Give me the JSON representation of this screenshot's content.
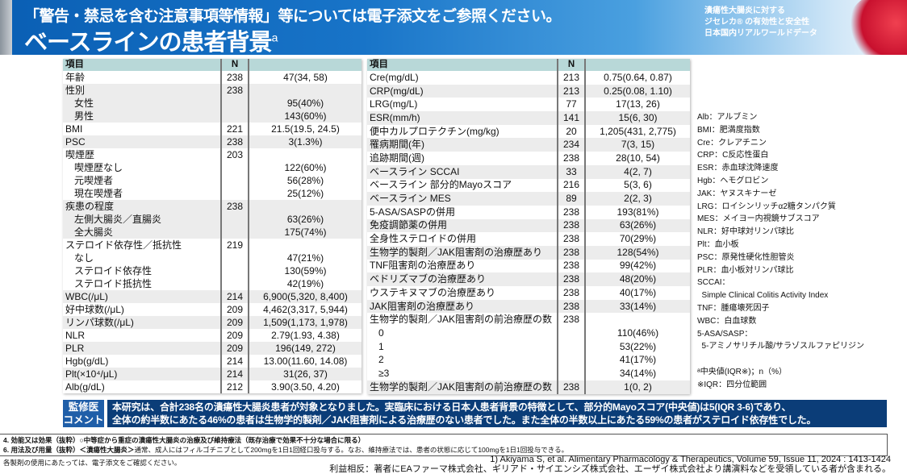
{
  "header": {
    "warning": "「警告・禁忌を含む注意事項等情報」等については電子添文をご参照ください。",
    "title": "ベースラインの患者背景",
    "title_sup": "a",
    "sub": [
      "潰瘍性大腸炎に対する",
      "ジセレカ® の有効性と安全性",
      "日本国内リアルワールドデータ"
    ]
  },
  "left_table": {
    "headers": [
      "項目",
      "N",
      ""
    ],
    "rows": [
      {
        "label": "年齢",
        "n": "238",
        "v": "47(34, 58)",
        "sub": false,
        "shade": false
      },
      {
        "label": "性別",
        "n": "238",
        "v": "",
        "sub": false,
        "shade": true
      },
      {
        "label": "女性",
        "n": "",
        "v": "95(40%)",
        "sub": true,
        "shade": true
      },
      {
        "label": "男性",
        "n": "",
        "v": "143(60%)",
        "sub": true,
        "shade": true
      },
      {
        "label": "BMI",
        "n": "221",
        "v": "21.5(19.5, 24.5)",
        "sub": false,
        "shade": false
      },
      {
        "label": "PSC",
        "n": "238",
        "v": "3(1.3%)",
        "sub": false,
        "shade": true
      },
      {
        "label": "喫煙歴",
        "n": "203",
        "v": "",
        "sub": false,
        "shade": false
      },
      {
        "label": "喫煙歴なし",
        "n": "",
        "v": "122(60%)",
        "sub": true,
        "shade": false
      },
      {
        "label": "元喫煙者",
        "n": "",
        "v": "56(28%)",
        "sub": true,
        "shade": false
      },
      {
        "label": "現在喫煙者",
        "n": "",
        "v": "25(12%)",
        "sub": true,
        "shade": false
      },
      {
        "label": "疾患の程度",
        "n": "238",
        "v": "",
        "sub": false,
        "shade": true
      },
      {
        "label": "左側大腸炎／直腸炎",
        "n": "",
        "v": "63(26%)",
        "sub": true,
        "shade": true
      },
      {
        "label": "全大腸炎",
        "n": "",
        "v": "175(74%)",
        "sub": true,
        "shade": true
      },
      {
        "label": "ステロイド依存性／抵抗性",
        "n": "219",
        "v": "",
        "sub": false,
        "shade": false
      },
      {
        "label": "なし",
        "n": "",
        "v": "47(21%)",
        "sub": true,
        "shade": false
      },
      {
        "label": "ステロイド依存性",
        "n": "",
        "v": "130(59%)",
        "sub": true,
        "shade": false
      },
      {
        "label": "ステロイド抵抗性",
        "n": "",
        "v": "42(19%)",
        "sub": true,
        "shade": false
      },
      {
        "label": "WBC(/μL)",
        "n": "214",
        "v": "6,900(5,320, 8,400)",
        "sub": false,
        "shade": true
      },
      {
        "label": "好中球数(/μL)",
        "n": "209",
        "v": "4,462(3,317, 5,944)",
        "sub": false,
        "shade": false
      },
      {
        "label": "リンパ球数(/μL)",
        "n": "209",
        "v": "1,509(1,173, 1,978)",
        "sub": false,
        "shade": true
      },
      {
        "label": "NLR",
        "n": "209",
        "v": "2.79(1.93, 4.38)",
        "sub": false,
        "shade": false
      },
      {
        "label": "PLR",
        "n": "209",
        "v": "196(149, 272)",
        "sub": false,
        "shade": true
      },
      {
        "label": "Hgb(g/dL)",
        "n": "214",
        "v": "13.00(11.60, 14.08)",
        "sub": false,
        "shade": false
      },
      {
        "label": "Plt(×10⁴/μL)",
        "n": "214",
        "v": "31(26, 37)",
        "sub": false,
        "shade": true
      },
      {
        "label": "Alb(g/dL)",
        "n": "212",
        "v": "3.90(3.50, 4.20)",
        "sub": false,
        "shade": false
      }
    ]
  },
  "right_table": {
    "headers": [
      "項目",
      "N",
      ""
    ],
    "rows": [
      {
        "label": "Cre(mg/dL)",
        "n": "213",
        "v": "0.75(0.64, 0.87)",
        "sub": false,
        "shade": false
      },
      {
        "label": "CRP(mg/dL)",
        "n": "213",
        "v": "0.25(0.08, 1.10)",
        "sub": false,
        "shade": true
      },
      {
        "label": "LRG(mg/L)",
        "n": "77",
        "v": "17(13, 26)",
        "sub": false,
        "shade": false
      },
      {
        "label": "ESR(mm/h)",
        "n": "141",
        "v": "15(6, 30)",
        "sub": false,
        "shade": true
      },
      {
        "label": "便中カルプロテクチン(mg/kg)",
        "n": "20",
        "v": "1,205(431, 2,775)",
        "sub": false,
        "shade": false
      },
      {
        "label": "罹病期間(年)",
        "n": "234",
        "v": "7(3, 15)",
        "sub": false,
        "shade": true
      },
      {
        "label": "追跡期間(週)",
        "n": "238",
        "v": "28(10, 54)",
        "sub": false,
        "shade": false
      },
      {
        "label": "ベースライン SCCAI",
        "n": "33",
        "v": "4(2, 7)",
        "sub": false,
        "shade": true
      },
      {
        "label": "ベースライン 部分的Mayoスコア",
        "n": "216",
        "v": "5(3, 6)",
        "sub": false,
        "shade": false
      },
      {
        "label": "ベースライン MES",
        "n": "89",
        "v": "2(2, 3)",
        "sub": false,
        "shade": true
      },
      {
        "label": "5-ASA/SASPの併用",
        "n": "238",
        "v": "193(81%)",
        "sub": false,
        "shade": false
      },
      {
        "label": "免疫調節薬の併用",
        "n": "238",
        "v": "63(26%)",
        "sub": false,
        "shade": true
      },
      {
        "label": "全身性ステロイドの併用",
        "n": "238",
        "v": "70(29%)",
        "sub": false,
        "shade": false
      },
      {
        "label": "生物学的製剤／JAK阻害剤の治療歴あり",
        "n": "238",
        "v": "128(54%)",
        "sub": false,
        "shade": true
      },
      {
        "label": "TNF阻害剤の治療歴あり",
        "n": "238",
        "v": "99(42%)",
        "sub": false,
        "shade": false
      },
      {
        "label": "ベドリズマブの治療歴あり",
        "n": "238",
        "v": "48(20%)",
        "sub": false,
        "shade": true
      },
      {
        "label": "ウステキヌマブの治療歴あり",
        "n": "238",
        "v": "40(17%)",
        "sub": false,
        "shade": false
      },
      {
        "label": "JAK阻害剤の治療歴あり",
        "n": "238",
        "v": "33(14%)",
        "sub": false,
        "shade": true
      },
      {
        "label": "生物学的製剤／JAK阻害剤の前治療歴の数",
        "n": "238",
        "v": "",
        "sub": false,
        "shade": false
      },
      {
        "label": "0",
        "n": "",
        "v": "110(46%)",
        "sub": true,
        "shade": false
      },
      {
        "label": "1",
        "n": "",
        "v": "53(22%)",
        "sub": true,
        "shade": false
      },
      {
        "label": "2",
        "n": "",
        "v": "41(17%)",
        "sub": true,
        "shade": false
      },
      {
        "label": "≥3",
        "n": "",
        "v": "34(14%)",
        "sub": true,
        "shade": false
      },
      {
        "label": "生物学的製剤／JAK阻害剤の前治療歴の数",
        "n": "238",
        "v": "1(0, 2)",
        "sub": false,
        "shade": true
      }
    ]
  },
  "abbreviations": [
    "Alb：アルブミン",
    "BMI：肥満度指数",
    "Cre：クレアチニン",
    "CRP：C反応性蛋白",
    "ESR：赤血球沈降速度",
    "Hgb：ヘモグロビン",
    "JAK：ヤヌスキナーゼ",
    "LRG：ロイシンリッチα2糖タンパク質",
    "MES：メイヨー内視鏡サブスコア",
    "NLR：好中球対リンパ球比",
    "Plt：血小板",
    "PSC：原発性硬化性胆管炎",
    "PLR：血小板対リンパ球比",
    "SCCAI：",
    "  Simple Clinical Colitis Activity Index",
    "TNF：腫瘍壊死因子",
    "WBC：白血球数",
    "5-ASA/SASP：",
    "  5-アミノサリチル酸/サラゾスルファピリジン",
    "",
    "ᵃ中央値(IQR※)；n（%）",
    "※IQR：四分位範囲"
  ],
  "comment": {
    "label": [
      "監修医",
      "コメント"
    ],
    "lines": [
      "本研究は、合計238名の潰瘍性大腸炎患者が対象となりました。実臨床における日本人患者背景の特徴として、部分的Mayoスコア(中央値)は5(IQR 3-6)であり、",
      "全体の約半数にあたる46%の患者は生物学的製剤／JAK阻害剤による治療歴のない患者でした。また全体の半数以上にあたる59%の患者がステロイド依存性でした。"
    ]
  },
  "notes": {
    "line1_head": "4. 効能又は効果（抜粋）",
    "line1_body": "○中等症から重症の潰瘍性大腸炎の治療及び維持療法（既存治療で効果不十分な場合に限る）",
    "line2_head": "6. 用法及び用量（抜粋）",
    "line2_bold": "＜潰瘍性大腸炎＞",
    "line2_body": "通常、成人にはフィルゴチニブとして200mgを1日1回経口投与する。なお、維持療法では、患者の状態に応じて100mgを1日1回投与できる。"
  },
  "footer": {
    "notice": "各製剤の使用にあたっては、電子添文をご確認ください。",
    "reference": "1) Akiyama S, et al. Alimentary Pharmacology & Therapeutics, Volume 59, Issue 11, 2024 : 1413-1424",
    "coi": "利益相反：著者にEAファーマ株式会社、ギリアド・サイエンシズ株式会社、エーザイ株式会社より講演料などを受領している者が含まれる。"
  }
}
